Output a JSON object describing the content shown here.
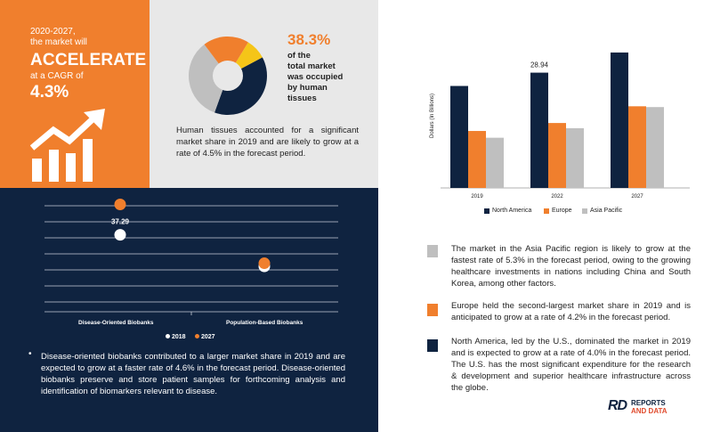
{
  "cagr_panel": {
    "line1": "2020-2027,",
    "line2": "the market will",
    "headline": "ACCELERATE",
    "line3": "at a CAGR of",
    "cagr": "4.3%"
  },
  "tissue_panel": {
    "percent": "38.3%",
    "percent_desc_1": "of the",
    "percent_desc_2": "total market",
    "percent_desc_3": "was occupied",
    "percent_desc_4": "by human",
    "percent_desc_5": "tissues",
    "description": "Human tissues accounted for a significant market share in 2019 and are likely to grow at a rate of 4.5% in the forecast period."
  },
  "biobank_panel": {
    "bullet": "Disease-oriented biobanks contributed to a larger market share in 2019 and are expected to grow at a faster rate of 4.6% in the forecast period. Disease-oriented biobanks preserve and store patient samples for forthcoming analysis and identification of biomarkers relevant to disease."
  },
  "region_notes": [
    {
      "text": "The market in the Asia Pacific region is likely to grow at the fastest rate of 5.3% in the forecast period, owing to the growing healthcare investments in nations including China and South Korea, among other factors.",
      "color": "#bfbfbf"
    },
    {
      "text": "Europe held the second-largest market share in 2019 and is anticipated to grow at a rate of 4.2% in the forecast period.",
      "color": "#f07f2d"
    },
    {
      "text": "North America, led by the U.S., dominated the market in 2019 and is expected to grow at a rate of 4.0% in the forecast period. The U.S. has the most significant expenditure for the research & development and superior healthcare infrastructure across the globe.",
      "color": "#0f2340"
    }
  ],
  "logo": {
    "mark": "RD",
    "line1": "REPORTS",
    "line2": "AND DATA"
  },
  "colors": {
    "orange": "#f07f2d",
    "navy": "#0f2340",
    "grey": "#bfbfbf",
    "yellow": "#f5c518"
  },
  "chart_data": [
    {
      "type": "pie",
      "style": "donut",
      "labels": [
        "",
        "",
        "",
        ""
      ],
      "values": [
        38.3,
        34.2,
        19.0,
        8.5
      ],
      "colors": [
        "#0f2340",
        "#bfbfbf",
        "#f07f2d",
        "#f5c518"
      ],
      "annotation": "38.3%"
    },
    {
      "type": "scatter",
      "categories": [
        "Disease-Oriented Biobanks",
        "Population-Based Biobanks"
      ],
      "series": [
        {
          "name": "2018",
          "values": [
            37.29,
            22.0
          ],
          "color": "#ffffff"
        },
        {
          "name": "2027",
          "values": [
            52.0,
            23.5
          ],
          "color": "#f07f2d"
        }
      ],
      "data_labels": [
        {
          "series": "2018",
          "category": "Disease-Oriented Biobanks",
          "text": "37.29"
        }
      ],
      "ylim": [
        0,
        60
      ],
      "legend": "bottom-center",
      "grid": true
    },
    {
      "type": "bar",
      "ylabel": "Dollars (In Billions)",
      "categories": [
        "2019",
        "2022",
        "2027"
      ],
      "series": [
        {
          "name": "North America",
          "values": [
            25.6,
            28.94,
            34.0
          ],
          "color": "#0f2340"
        },
        {
          "name": "Europe",
          "values": [
            14.3,
            16.3,
            20.5
          ],
          "color": "#f07f2d"
        },
        {
          "name": "Asia Pacific",
          "values": [
            12.6,
            15.0,
            20.3
          ],
          "color": "#bfbfbf"
        }
      ],
      "data_labels": [
        {
          "series": "North America",
          "category": "2022",
          "text": "28.94"
        }
      ],
      "ylim": [
        0,
        36
      ],
      "legend": "bottom",
      "grid": false
    }
  ]
}
